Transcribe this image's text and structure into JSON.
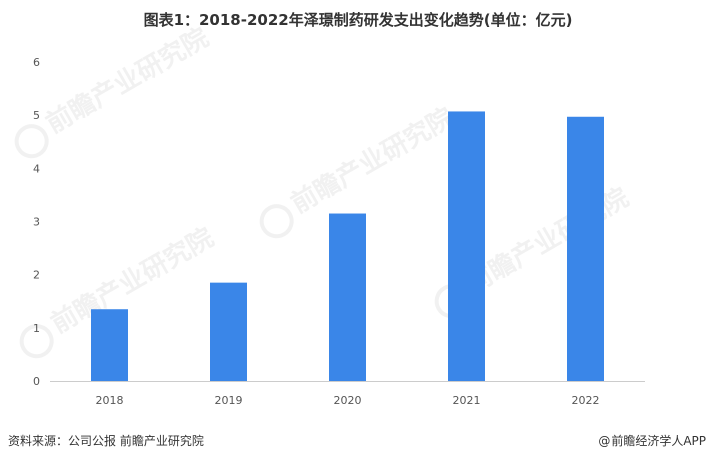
{
  "title": "图表1：2018-2022年泽璟制药研发支出变化趋势(单位：亿元)",
  "chart_data": {
    "type": "bar",
    "categories": [
      "2018",
      "2019",
      "2020",
      "2021",
      "2022"
    ],
    "values": [
      1.35,
      1.85,
      3.15,
      5.07,
      4.97
    ],
    "ylim": [
      0,
      6
    ],
    "yticks": [
      0,
      1,
      2,
      3,
      4,
      5,
      6
    ],
    "grid": false,
    "bar_color": "#3a86e8"
  },
  "footer": {
    "source": "资料来源：公司公报 前瞻产业研究院",
    "brand_icon": "at-icon",
    "brand": "前瞻经济学人APP"
  },
  "watermark": {
    "icon": "qianzhan-logo-icon",
    "text": "前瞻产业研究院"
  }
}
